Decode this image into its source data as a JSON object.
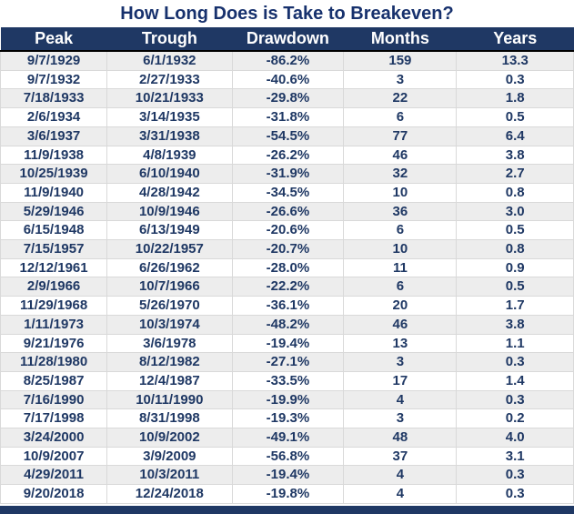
{
  "title": "How Long Does is Take to Breakeven?",
  "colors": {
    "header_bg": "#1F3864",
    "header_text": "#FFFFFF",
    "title_text": "#17316D",
    "row_text": "#1F3864",
    "stripe_bg": "#EDEDED",
    "grid_line": "#D9D9D9",
    "footer_bar": "#1F3864"
  },
  "chart_data": {
    "type": "table",
    "title": "How Long Does is Take to Breakeven?",
    "columns": [
      "Peak",
      "Trough",
      "Drawdown",
      "Months",
      "Years"
    ],
    "rows": [
      [
        "9/7/1929",
        "6/1/1932",
        "-86.2%",
        "159",
        "13.3"
      ],
      [
        "9/7/1932",
        "2/27/1933",
        "-40.6%",
        "3",
        "0.3"
      ],
      [
        "7/18/1933",
        "10/21/1933",
        "-29.8%",
        "22",
        "1.8"
      ],
      [
        "2/6/1934",
        "3/14/1935",
        "-31.8%",
        "6",
        "0.5"
      ],
      [
        "3/6/1937",
        "3/31/1938",
        "-54.5%",
        "77",
        "6.4"
      ],
      [
        "11/9/1938",
        "4/8/1939",
        "-26.2%",
        "46",
        "3.8"
      ],
      [
        "10/25/1939",
        "6/10/1940",
        "-31.9%",
        "32",
        "2.7"
      ],
      [
        "11/9/1940",
        "4/28/1942",
        "-34.5%",
        "10",
        "0.8"
      ],
      [
        "5/29/1946",
        "10/9/1946",
        "-26.6%",
        "36",
        "3.0"
      ],
      [
        "6/15/1948",
        "6/13/1949",
        "-20.6%",
        "6",
        "0.5"
      ],
      [
        "7/15/1957",
        "10/22/1957",
        "-20.7%",
        "10",
        "0.8"
      ],
      [
        "12/12/1961",
        "6/26/1962",
        "-28.0%",
        "11",
        "0.9"
      ],
      [
        "2/9/1966",
        "10/7/1966",
        "-22.2%",
        "6",
        "0.5"
      ],
      [
        "11/29/1968",
        "5/26/1970",
        "-36.1%",
        "20",
        "1.7"
      ],
      [
        "1/11/1973",
        "10/3/1974",
        "-48.2%",
        "46",
        "3.8"
      ],
      [
        "9/21/1976",
        "3/6/1978",
        "-19.4%",
        "13",
        "1.1"
      ],
      [
        "11/28/1980",
        "8/12/1982",
        "-27.1%",
        "3",
        "0.3"
      ],
      [
        "8/25/1987",
        "12/4/1987",
        "-33.5%",
        "17",
        "1.4"
      ],
      [
        "7/16/1990",
        "10/11/1990",
        "-19.9%",
        "4",
        "0.3"
      ],
      [
        "7/17/1998",
        "8/31/1998",
        "-19.3%",
        "3",
        "0.2"
      ],
      [
        "3/24/2000",
        "10/9/2002",
        "-49.1%",
        "48",
        "4.0"
      ],
      [
        "10/9/2007",
        "3/9/2009",
        "-56.8%",
        "37",
        "3.1"
      ],
      [
        "4/29/2011",
        "10/3/2011",
        "-19.4%",
        "4",
        "0.3"
      ],
      [
        "9/20/2018",
        "12/24/2018",
        "-19.8%",
        "4",
        "0.3"
      ]
    ]
  }
}
